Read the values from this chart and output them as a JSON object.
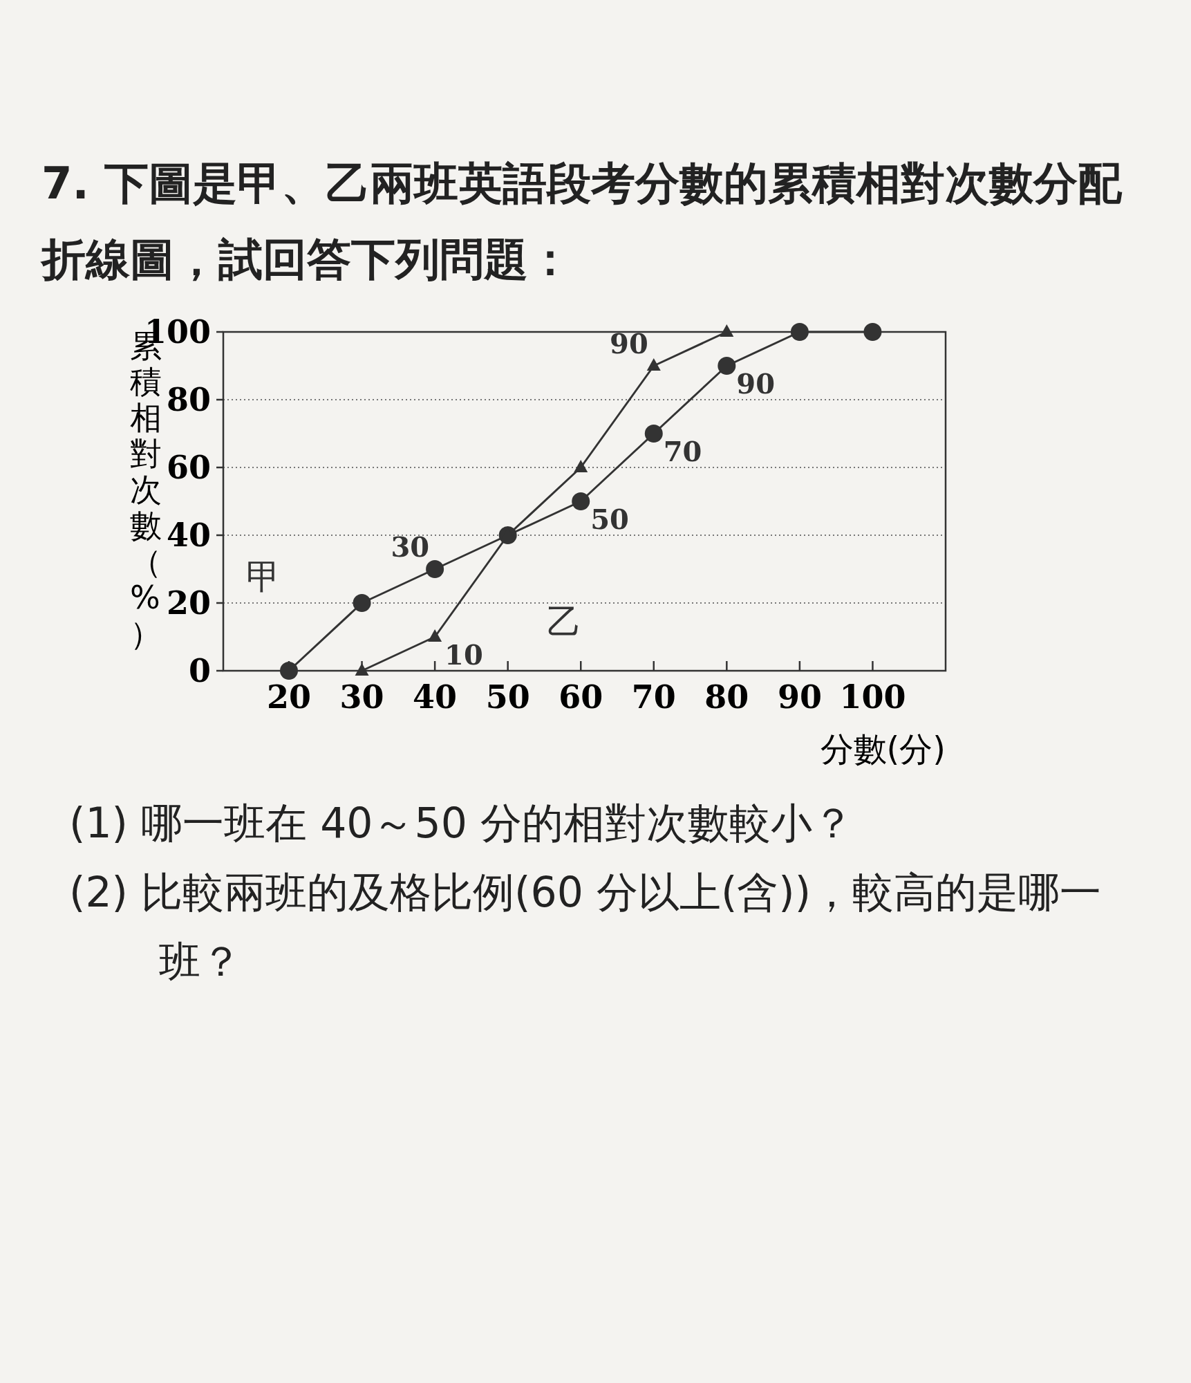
{
  "chart_data": {
    "type": "line",
    "title": "7. 下圖是甲、乙兩班英語段考分數的累積相對次數分配折線圖，試回答下列問題：",
    "xlabel": "分數(分)",
    "ylabel": "累積相對次數（%）",
    "xlim": [
      11,
      110
    ],
    "ylim": [
      0,
      100
    ],
    "xticks": [
      20,
      30,
      40,
      50,
      60,
      70,
      80,
      90,
      100
    ],
    "yticks": [
      0,
      20,
      40,
      60,
      80,
      100
    ],
    "grid": "y",
    "series": [
      {
        "name": "甲",
        "color": "#333333",
        "marker": "circle",
        "x": [
          20,
          30,
          40,
          50,
          60,
          70,
          80,
          90,
          100
        ],
        "values": [
          0,
          20,
          30,
          40,
          50,
          70,
          90,
          100,
          100
        ],
        "value_labels": [
          null,
          null,
          "30",
          null,
          "50",
          "70",
          "90",
          null,
          null
        ]
      },
      {
        "name": "乙",
        "color": "#333333",
        "marker": "triangle",
        "x": [
          30,
          40,
          50,
          60,
          70,
          80
        ],
        "values": [
          0,
          10,
          40,
          60,
          90,
          100
        ],
        "value_labels": [
          null,
          "10",
          null,
          null,
          "90",
          null
        ]
      }
    ],
    "annotations": [
      "(1) 哪一班在 40～50 分的相對次數較小？",
      "(2) 比較兩班的及格比例(60 分以上(含))，較高的是哪一班？"
    ]
  }
}
